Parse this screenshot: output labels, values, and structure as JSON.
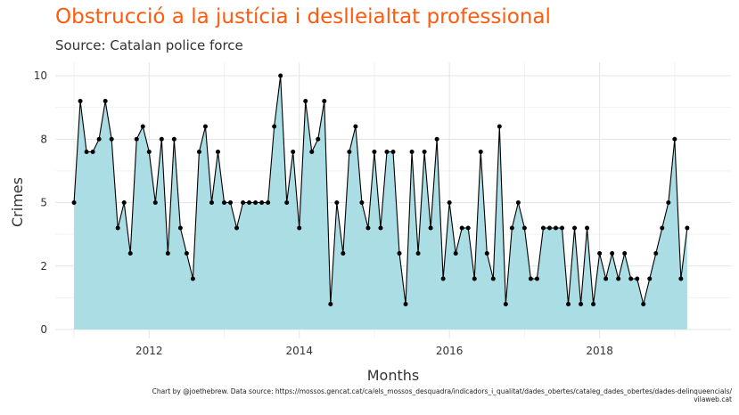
{
  "chart_data": {
    "type": "area",
    "title": "Obstrucció a la justícia i deslleialtat professional",
    "subtitle": "Source: Catalan police force",
    "xlabel": "Months",
    "ylabel": "Crimes",
    "caption_line1": "Chart by @joethebrew. Data source: https://mossos.gencat.cat/ca/els_mossos_desquadra/indicadors_i_qualitat/dades_obertes/cataleg_dades_obertes/dades-delinqueencials/",
    "caption_line2": "vilaweb.cat",
    "x_ticks": [
      2012,
      2014,
      2016,
      2018
    ],
    "y_ticks": [
      0,
      2,
      5,
      8,
      10
    ],
    "y_tick_values": [
      0,
      2.5,
      5,
      7.5,
      10
    ],
    "ylim": [
      0,
      10
    ],
    "xlim": [
      2010.75,
      2019.75
    ],
    "fill_color": "#ABDDE4",
    "line_color": "#000000",
    "grid": true,
    "start": "2011-01",
    "values": [
      5,
      9,
      7,
      7,
      7.5,
      9,
      7.5,
      4,
      5,
      3,
      7.5,
      8,
      7,
      5,
      7.5,
      3,
      7.5,
      4,
      3,
      2,
      7,
      8,
      5,
      7,
      5,
      5,
      4,
      5,
      5,
      5,
      5,
      5,
      8,
      10,
      5,
      7,
      4,
      9,
      7,
      7.5,
      9,
      1,
      5,
      3,
      7,
      8,
      5,
      4,
      7,
      4,
      7,
      7,
      3,
      1,
      7,
      3,
      7,
      4,
      7.5,
      2,
      5,
      3,
      4,
      4,
      2,
      7,
      3,
      2,
      8,
      1,
      4,
      5,
      4,
      2,
      2,
      4,
      4,
      4,
      4,
      1,
      4,
      1,
      4,
      1,
      3,
      2,
      3,
      2,
      3,
      2,
      2,
      1,
      2,
      3,
      4,
      5,
      7.5,
      2,
      4
    ]
  }
}
